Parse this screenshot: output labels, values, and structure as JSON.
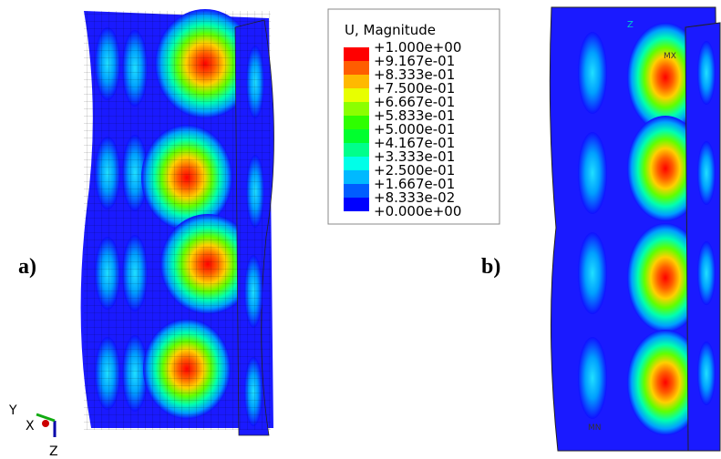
{
  "legend": {
    "title": "U, Magnitude",
    "entries": [
      "+1.000e+00",
      "+9.167e-01",
      "+8.333e-01",
      "+7.500e-01",
      "+6.667e-01",
      "+5.833e-01",
      "+5.000e-01",
      "+4.167e-01",
      "+3.333e-01",
      "+2.500e-01",
      "+1.667e-01",
      "+8.333e-02",
      "+0.000e+00"
    ],
    "colors": [
      "#ff0000",
      "#ff5d00",
      "#ffb900",
      "#e8ff00",
      "#8bff00",
      "#2eff00",
      "#00ff2e",
      "#00ff8b",
      "#00ffe8",
      "#00b9ff",
      "#005dff",
      "#0000ff"
    ]
  },
  "panels": [
    {
      "label": "a)"
    },
    {
      "label": "b)"
    }
  ],
  "triad": {
    "y": "Y",
    "x": "X",
    "z": "Z"
  },
  "markers": {
    "max": "MX",
    "min": "MN",
    "axis": "Z"
  }
}
